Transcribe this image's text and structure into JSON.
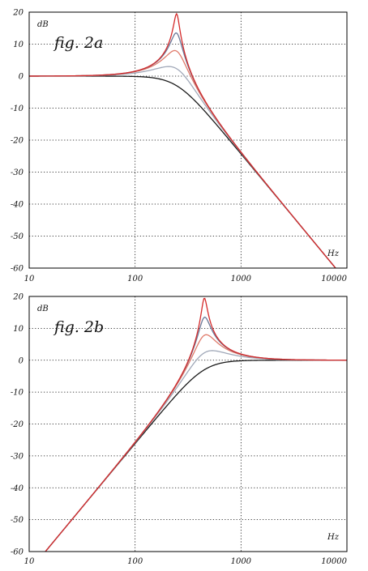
{
  "chart_data": [
    {
      "type": "line",
      "title": "fig. 2a",
      "xlabel": "Hz",
      "ylabel": "dB",
      "xscale": "log",
      "xlim": [
        10,
        10000
      ],
      "ylim": [
        -60,
        20
      ],
      "xticks": [
        "10",
        "100",
        "1000",
        "10000"
      ],
      "yticks": [
        "20",
        "10",
        "0",
        "-10",
        "-20",
        "-30",
        "-40",
        "-50",
        "-60"
      ],
      "grid": true,
      "series": [
        {
          "color": "#1a1a1a",
          "filter": "lowpass",
          "fc": 247,
          "peak_db": 0,
          "points": [
            [
              10,
              0
            ],
            [
              100,
              -0.3
            ],
            [
              247,
              -3
            ],
            [
              600,
              -15.4
            ],
            [
              1000,
              -24.2
            ],
            [
              1500,
              -31.3
            ]
          ]
        },
        {
          "color": "#a0a8b8",
          "filter": "lowpass",
          "fc": 247,
          "peak_db": 3,
          "points": [
            [
              10,
              0
            ],
            [
              100,
              0.5
            ],
            [
              200,
              2.6
            ],
            [
              247,
              2.4
            ],
            [
              600,
              -15
            ],
            [
              1500,
              -31.3
            ]
          ]
        },
        {
          "color": "#e07a6a",
          "filter": "lowpass",
          "fc": 247,
          "peak_db": 8,
          "points": [
            [
              10,
              0
            ],
            [
              100,
              0.8
            ],
            [
              200,
              6.5
            ],
            [
              247,
              8
            ],
            [
              600,
              -14.5
            ],
            [
              1500,
              -31.3
            ]
          ]
        },
        {
          "color": "#6a7898",
          "filter": "lowpass",
          "fc": 247,
          "peak_db": 13.5,
          "points": [
            [
              10,
              0
            ],
            [
              100,
              0.9
            ],
            [
              200,
              9.5
            ],
            [
              247,
              13.5
            ],
            [
              600,
              -14.3
            ],
            [
              1500,
              -31.3
            ]
          ]
        },
        {
          "color": "#d42a2a",
          "filter": "lowpass",
          "fc": 247,
          "peak_db": 19.5,
          "points": [
            [
              10,
              0
            ],
            [
              100,
              1
            ],
            [
              200,
              12
            ],
            [
              247,
              19.5
            ],
            [
              600,
              -14.2
            ],
            [
              1500,
              -31.3
            ]
          ]
        }
      ]
    },
    {
      "type": "line",
      "title": "fig. 2b",
      "xlabel": "Hz",
      "ylabel": "dB",
      "xscale": "log",
      "xlim": [
        10,
        10000
      ],
      "ylim": [
        -60,
        20
      ],
      "xticks": [
        "10",
        "100",
        "1000",
        "10000"
      ],
      "yticks": [
        "20",
        "10",
        "0",
        "-10",
        "-20",
        "-30",
        "-40",
        "-50",
        "-60"
      ],
      "grid": true,
      "series": [
        {
          "color": "#1a1a1a",
          "filter": "highpass",
          "fc": 450,
          "peak_db": 0,
          "points": [
            [
              75,
              -62
            ],
            [
              100,
              -26
            ],
            [
              200,
              -14.2
            ],
            [
              450,
              -3
            ],
            [
              1000,
              -0.6
            ],
            [
              10000,
              0
            ]
          ]
        },
        {
          "color": "#a0a8b8",
          "filter": "highpass",
          "fc": 450,
          "peak_db": 3,
          "points": [
            [
              75,
              -62
            ],
            [
              100,
              -26
            ],
            [
              200,
              -13
            ],
            [
              450,
              2.2
            ],
            [
              1000,
              1.5
            ],
            [
              10000,
              0
            ]
          ]
        },
        {
          "color": "#e07a6a",
          "filter": "highpass",
          "fc": 450,
          "peak_db": 8,
          "points": [
            [
              75,
              -62
            ],
            [
              100,
              -26
            ],
            [
              200,
              -11.8
            ],
            [
              450,
              8
            ],
            [
              1000,
              2
            ],
            [
              10000,
              0
            ]
          ]
        },
        {
          "color": "#6a7898",
          "filter": "highpass",
          "fc": 450,
          "peak_db": 13.5,
          "points": [
            [
              75,
              -62
            ],
            [
              100,
              -26
            ],
            [
              200,
              -11.4
            ],
            [
              450,
              13.5
            ],
            [
              1000,
              2.2
            ],
            [
              10000,
              0
            ]
          ]
        },
        {
          "color": "#d42a2a",
          "filter": "highpass",
          "fc": 450,
          "peak_db": 19.5,
          "points": [
            [
              75,
              -62
            ],
            [
              100,
              -26
            ],
            [
              200,
              -11.2
            ],
            [
              450,
              19.5
            ],
            [
              1000,
              2.3
            ],
            [
              10000,
              0
            ]
          ]
        }
      ]
    }
  ]
}
